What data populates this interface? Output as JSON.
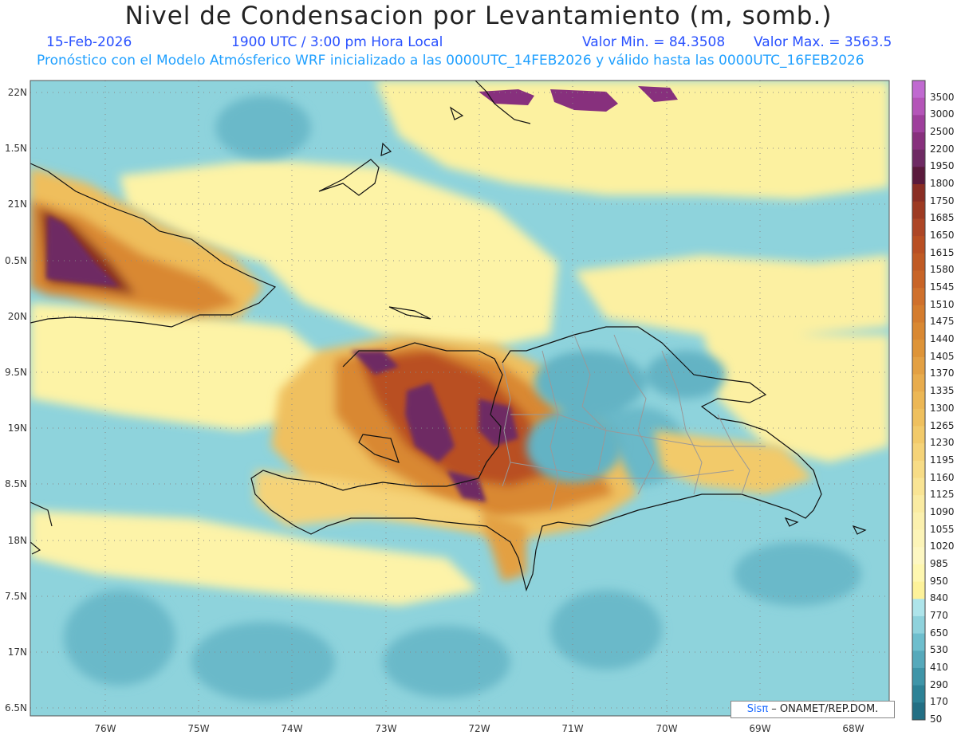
{
  "title": "Nivel de Condensacion por Levantamiento (m, somb.)",
  "subtitle": {
    "date": "15-Feb-2026",
    "time": "1900 UTC / 3:00 pm Hora Local",
    "vmin": "Valor Min. = 84.3508",
    "vmax": "Valor Max. = 3563.5",
    "description": "Pronóstico con el Modelo Atmósferico WRF inicializado a las 0000UTC_14FEB2026 y válido hasta las  0000UTC_16FEB2026"
  },
  "lat_labels": [
    "22N",
    "1.5N",
    "21N",
    "0.5N",
    "20N",
    "9.5N",
    "19N",
    "8.5N",
    "18N",
    "7.5N",
    "17N",
    "6.5N"
  ],
  "lon_labels": [
    "76W",
    "75W",
    "74W",
    "73W",
    "72W",
    "71W",
    "70W",
    "69W",
    "68W"
  ],
  "credit": {
    "brand": "Sisπ",
    "text": " – ONAMET/REP.DOM."
  },
  "colorbar": {
    "labels": [
      "3500",
      "3000",
      "2500",
      "2200",
      "1950",
      "1800",
      "1750",
      "1685",
      "1650",
      "1615",
      "1580",
      "1545",
      "1510",
      "1475",
      "1440",
      "1405",
      "1370",
      "1335",
      "1300",
      "1265",
      "1230",
      "1195",
      "1160",
      "1125",
      "1090",
      "1055",
      "1020",
      "985",
      "950",
      "840",
      "770",
      "650",
      "530",
      "410",
      "290",
      "170",
      "50"
    ],
    "colors": [
      "#c06ad0",
      "#b455b8",
      "#9e3f9c",
      "#87307d",
      "#6e2a63",
      "#5a1a3c",
      "#8a2e24",
      "#9d3a22",
      "#ad4626",
      "#b94f23",
      "#c05a24",
      "#c86427",
      "#cf702c",
      "#d47c2e",
      "#d98832",
      "#de9438",
      "#e3a043",
      "#e8ac4d",
      "#ecb755",
      "#efc05e",
      "#f2ca6a",
      "#f5d378",
      "#f7dc86",
      "#f9e494",
      "#faeba2",
      "#fbf0ae",
      "#fcf4b8",
      "#fdf7c2",
      "#fef7b0",
      "#fdf29a",
      "#aee4ea",
      "#8fd2dc",
      "#6ebecd",
      "#56a9bb",
      "#3f95a8",
      "#2d8296",
      "#236f84"
    ]
  }
}
